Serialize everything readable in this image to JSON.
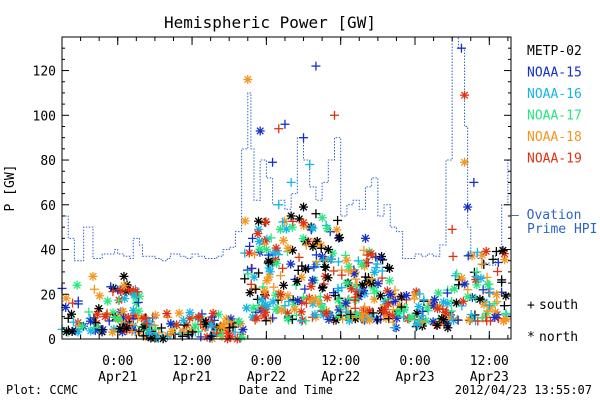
{
  "chart_data": {
    "type": "scatter",
    "title": "Hemispheric Power [GW]",
    "xlabel": "Date and Time",
    "ylabel": "P [GW]",
    "ylim": [
      0,
      135
    ],
    "y_ticks": [
      0,
      20,
      40,
      60,
      80,
      100,
      120
    ],
    "xlim": [
      "2012-04-20 15:00",
      "2012-04-23 15:30"
    ],
    "x_ticks": [
      {
        "time": "2012-04-21 00:00",
        "line1": "0:00",
        "line2": "Apr21"
      },
      {
        "time": "2012-04-21 12:00",
        "line1": "12:00",
        "line2": "Apr21"
      },
      {
        "time": "2012-04-22 00:00",
        "line1": "0:00",
        "line2": "Apr22"
      },
      {
        "time": "2012-04-22 12:00",
        "line1": "12:00",
        "line2": "Apr22"
      },
      {
        "time": "2012-04-23 00:00",
        "line1": "0:00",
        "line2": "Apr23"
      },
      {
        "time": "2012-04-23 12:00",
        "line1": "12:00",
        "line2": "Apr23"
      }
    ],
    "legend_position": "right",
    "satellites": [
      {
        "name": "METP-02",
        "color": "#000000"
      },
      {
        "name": "NOAA-15",
        "color": "#1530c8"
      },
      {
        "name": "NOAA-16",
        "color": "#14b4e6"
      },
      {
        "name": "NOAA-17",
        "color": "#28e682"
      },
      {
        "name": "NOAA-18",
        "color": "#f5961e"
      },
      {
        "name": "NOAA-19",
        "color": "#e13214"
      }
    ],
    "ovation": {
      "name_line1": "— Ovation",
      "name_line2": "Prime HPI",
      "color": "#2d64c8",
      "points": [
        [
          "2012-04-20 15:00",
          55
        ],
        [
          "2012-04-20 16:00",
          45
        ],
        [
          "2012-04-20 17:00",
          35
        ],
        [
          "2012-04-20 18:00",
          35
        ],
        [
          "2012-04-20 18:30",
          50
        ],
        [
          "2012-04-20 19:30",
          50
        ],
        [
          "2012-04-20 20:00",
          36
        ],
        [
          "2012-04-20 21:00",
          36
        ],
        [
          "2012-04-20 21:30",
          38
        ],
        [
          "2012-04-20 23:00",
          38
        ],
        [
          "2012-04-20 23:30",
          40
        ],
        [
          "2012-04-21 00:00",
          38
        ],
        [
          "2012-04-21 01:00",
          37
        ],
        [
          "2012-04-21 02:00",
          36
        ],
        [
          "2012-04-21 02:30",
          45
        ],
        [
          "2012-04-21 03:30",
          42
        ],
        [
          "2012-04-21 04:00",
          37
        ],
        [
          "2012-04-21 06:00",
          36
        ],
        [
          "2012-04-21 07:00",
          35
        ],
        [
          "2012-04-21 08:00",
          36
        ],
        [
          "2012-04-21 08:30",
          38
        ],
        [
          "2012-04-21 10:00",
          37
        ],
        [
          "2012-04-21 11:00",
          36
        ],
        [
          "2012-04-21 12:00",
          38
        ],
        [
          "2012-04-21 13:00",
          37
        ],
        [
          "2012-04-21 14:00",
          36
        ],
        [
          "2012-04-21 15:00",
          36
        ],
        [
          "2012-04-21 16:00",
          37
        ],
        [
          "2012-04-21 17:00",
          40
        ],
        [
          "2012-04-21 18:00",
          41
        ],
        [
          "2012-04-21 19:00",
          48
        ],
        [
          "2012-04-21 20:00",
          85
        ],
        [
          "2012-04-21 21:00",
          110
        ],
        [
          "2012-04-21 21:30",
          85
        ],
        [
          "2012-04-21 22:00",
          62
        ],
        [
          "2012-04-21 23:00",
          80
        ],
        [
          "2012-04-22 00:00",
          72
        ],
        [
          "2012-04-22 01:00",
          60
        ],
        [
          "2012-04-22 02:00",
          62
        ],
        [
          "2012-04-22 03:00",
          58
        ],
        [
          "2012-04-22 04:00",
          65
        ],
        [
          "2012-04-22 05:00",
          90
        ],
        [
          "2012-04-22 06:00",
          80
        ],
        [
          "2012-04-22 07:00",
          68
        ],
        [
          "2012-04-22 08:00",
          62
        ],
        [
          "2012-04-22 09:00",
          70
        ],
        [
          "2012-04-22 10:00",
          80
        ],
        [
          "2012-04-22 11:00",
          90
        ],
        [
          "2012-04-22 12:00",
          55
        ],
        [
          "2012-04-22 13:00",
          60
        ],
        [
          "2012-04-22 14:00",
          62
        ],
        [
          "2012-04-22 15:00",
          58
        ],
        [
          "2012-04-22 16:00",
          68
        ],
        [
          "2012-04-22 17:00",
          72
        ],
        [
          "2012-04-22 18:00",
          55
        ],
        [
          "2012-04-22 19:00",
          60
        ],
        [
          "2012-04-22 20:00",
          50
        ],
        [
          "2012-04-22 21:00",
          48
        ],
        [
          "2012-04-22 22:00",
          36
        ],
        [
          "2012-04-22 23:00",
          36
        ],
        [
          "2012-04-23 00:00",
          38
        ],
        [
          "2012-04-23 01:00",
          37
        ],
        [
          "2012-04-23 02:00",
          38
        ],
        [
          "2012-04-23 03:00",
          37
        ],
        [
          "2012-04-23 04:00",
          42
        ],
        [
          "2012-04-23 05:00",
          80
        ],
        [
          "2012-04-23 06:00",
          135
        ],
        [
          "2012-04-23 07:00",
          130
        ],
        [
          "2012-04-23 08:00",
          95
        ],
        [
          "2012-04-23 08:30",
          50
        ],
        [
          "2012-04-23 09:00",
          38
        ],
        [
          "2012-04-23 10:00",
          36
        ],
        [
          "2012-04-23 11:00",
          34
        ],
        [
          "2012-04-23 12:00",
          33
        ],
        [
          "2012-04-23 13:00",
          38
        ],
        [
          "2012-04-23 14:00",
          60
        ],
        [
          "2012-04-23 15:00",
          80
        ],
        [
          "2012-04-23 15:30",
          85
        ]
      ]
    },
    "marker_legend": [
      {
        "symbol": "+",
        "label": "south"
      },
      {
        "symbol": "*",
        "label": "north"
      }
    ],
    "observations": [
      {
        "sat": "NOAA-15",
        "time": "2012-04-21 23:00",
        "value": 93,
        "hemi": "north"
      },
      {
        "sat": "NOAA-15",
        "time": "2012-04-22 03:00",
        "value": 96,
        "hemi": "south"
      },
      {
        "sat": "NOAA-15",
        "time": "2012-04-22 08:00",
        "value": 122,
        "hemi": "south"
      },
      {
        "sat": "NOAA-15",
        "time": "2012-04-22 06:00",
        "value": 90,
        "hemi": "south"
      },
      {
        "sat": "NOAA-15",
        "time": "2012-04-22 01:00",
        "value": 79,
        "hemi": "south"
      },
      {
        "sat": "NOAA-15",
        "time": "2012-04-23 08:30",
        "value": 59,
        "hemi": "north"
      },
      {
        "sat": "NOAA-15",
        "time": "2012-04-23 09:30",
        "value": 70,
        "hemi": "south"
      },
      {
        "sat": "NOAA-15",
        "time": "2012-04-23 07:30",
        "value": 130,
        "hemi": "south"
      },
      {
        "sat": "NOAA-15",
        "time": "2012-04-22 16:00",
        "value": 45,
        "hemi": "north"
      },
      {
        "sat": "NOAA-15",
        "time": "2012-04-23 11:00",
        "value": 22,
        "hemi": "south"
      },
      {
        "sat": "NOAA-16",
        "time": "2012-04-22 07:00",
        "value": 78,
        "hemi": "south"
      },
      {
        "sat": "NOAA-16",
        "time": "2012-04-22 04:00",
        "value": 70,
        "hemi": "south"
      },
      {
        "sat": "NOAA-16",
        "time": "2012-04-22 02:00",
        "value": 60,
        "hemi": "south"
      },
      {
        "sat": "NOAA-16",
        "time": "2012-04-23 12:00",
        "value": 15,
        "hemi": "south"
      },
      {
        "sat": "NOAA-17",
        "time": "2012-04-22 00:00",
        "value": 40,
        "hemi": "north"
      },
      {
        "sat": "NOAA-17",
        "time": "2012-04-22 13:00",
        "value": 25,
        "hemi": "north"
      },
      {
        "sat": "NOAA-17",
        "time": "2012-04-23 10:00",
        "value": 30,
        "hemi": "south"
      },
      {
        "sat": "NOAA-18",
        "time": "2012-04-21 21:00",
        "value": 116,
        "hemi": "north"
      },
      {
        "sat": "NOAA-18",
        "time": "2012-04-23 08:00",
        "value": 79,
        "hemi": "north"
      },
      {
        "sat": "NOAA-18",
        "time": "2012-04-20 20:00",
        "value": 28,
        "hemi": "north"
      },
      {
        "sat": "NOAA-18",
        "time": "2012-04-22 17:00",
        "value": 27,
        "hemi": "south"
      },
      {
        "sat": "NOAA-19",
        "time": "2012-04-22 02:00",
        "value": 94,
        "hemi": "south"
      },
      {
        "sat": "NOAA-19",
        "time": "2012-04-22 11:00",
        "value": 100,
        "hemi": "south"
      },
      {
        "sat": "NOAA-19",
        "time": "2012-04-23 08:00",
        "value": 109,
        "hemi": "north"
      },
      {
        "sat": "NOAA-19",
        "time": "2012-04-22 06:00",
        "value": 52,
        "hemi": "north"
      },
      {
        "sat": "NOAA-19",
        "time": "2012-04-23 06:00",
        "value": 49,
        "hemi": "south"
      },
      {
        "sat": "METP-02",
        "time": "2012-04-22 06:00",
        "value": 59,
        "hemi": "north"
      },
      {
        "sat": "METP-02",
        "time": "2012-04-22 08:00",
        "value": 56,
        "hemi": "south"
      },
      {
        "sat": "METP-02",
        "time": "2012-04-22 11:30",
        "value": 53,
        "hemi": "south"
      },
      {
        "sat": "METP-02",
        "time": "2012-04-22 10:00",
        "value": 40,
        "hemi": "north"
      },
      {
        "sat": "METP-02",
        "time": "2012-04-22 04:00",
        "value": 55,
        "hemi": "north"
      },
      {
        "sat": "METP-02",
        "time": "2012-04-21 01:00",
        "value": 28,
        "hemi": "north"
      }
    ],
    "dense_cloud": [
      {
        "start": "2012-04-20 15:00",
        "end": "2012-04-21 04:00",
        "min": 3,
        "max": 25,
        "count": 110
      },
      {
        "start": "2012-04-21 04:00",
        "end": "2012-04-21 20:30",
        "min": 0,
        "max": 12,
        "count": 120
      },
      {
        "start": "2012-04-21 20:30",
        "end": "2012-04-22 12:00",
        "min": 8,
        "max": 55,
        "count": 200
      },
      {
        "start": "2012-04-22 12:00",
        "end": "2012-04-22 20:00",
        "min": 8,
        "max": 40,
        "count": 110
      },
      {
        "start": "2012-04-22 20:00",
        "end": "2012-04-23 06:00",
        "min": 5,
        "max": 22,
        "count": 80
      },
      {
        "start": "2012-04-23 06:00",
        "end": "2012-04-23 15:00",
        "min": 8,
        "max": 40,
        "count": 80
      }
    ]
  },
  "footer": {
    "plot_credit": "Plot: CCMC",
    "timestamp": "2012/04/23 13:55:07"
  }
}
